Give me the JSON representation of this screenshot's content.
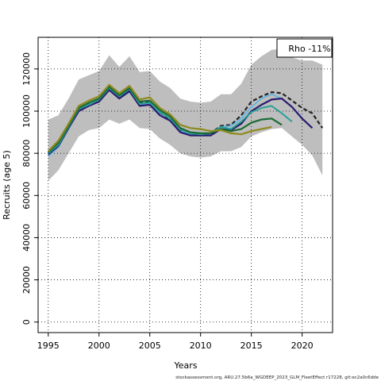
{
  "chart_data": {
    "type": "line",
    "xlabel": "Years",
    "ylabel": "Recruits (age 5)",
    "xlim": [
      1994,
      2023
    ],
    "ylim": [
      -5000,
      135000
    ],
    "xticks": [
      1995,
      2000,
      2005,
      2010,
      2015,
      2020
    ],
    "yticks": [
      0,
      20000,
      40000,
      60000,
      80000,
      100000,
      120000
    ],
    "grid": true,
    "legend": {
      "position": "top-right",
      "text": "Rho -11%"
    },
    "footer": "stockassessment.org, ARU.27.5b6a_WGDEEP_2023_GLM_FleetEffect r17228, git:ec2a0c6dde",
    "band": {
      "color": "#bebebe",
      "x": [
        1995,
        1996,
        1997,
        1998,
        1999,
        2000,
        2001,
        2002,
        2003,
        2004,
        2005,
        2006,
        2007,
        2008,
        2009,
        2010,
        2011,
        2012,
        2013,
        2014,
        2015,
        2016,
        2017,
        2018,
        2019,
        2020,
        2021,
        2022
      ],
      "upper": [
        96000,
        98000,
        106000,
        115000,
        117000,
        119000,
        126500,
        121000,
        126000,
        118500,
        119000,
        114000,
        111000,
        106000,
        104500,
        104000,
        104500,
        108000,
        108000,
        113000,
        122000,
        126000,
        129000,
        129500,
        125500,
        124000,
        124000,
        122000
      ],
      "lower": [
        67000,
        72000,
        80000,
        88000,
        91000,
        92000,
        96000,
        94000,
        96000,
        92000,
        91500,
        87000,
        84000,
        80000,
        78500,
        78000,
        78500,
        81000,
        81000,
        83000,
        88000,
        90000,
        91500,
        92000,
        88000,
        84000,
        79000,
        69500
      ]
    },
    "series": [
      {
        "color": "#222222",
        "dash": "5,3",
        "width": 2.2,
        "x": [
          1995,
          1996,
          1997,
          1998,
          1999,
          2000,
          2001,
          2002,
          2003,
          2004,
          2005,
          2006,
          2007,
          2008,
          2009,
          2010,
          2011,
          2012,
          2013,
          2014,
          2015,
          2016,
          2017,
          2018,
          2019,
          2020,
          2021,
          2022
        ],
        "y": [
          80000,
          84000,
          92000,
          101000,
          103000,
          105000,
          111000,
          107000,
          110000,
          104000,
          104500,
          99500,
          96000,
          91000,
          89500,
          89000,
          89500,
          93000,
          93500,
          98000,
          104500,
          107000,
          109000,
          108500,
          105000,
          101500,
          99000,
          92000
        ]
      },
      {
        "color": "#5ab4e5",
        "width": 1.6,
        "x": [
          1995,
          1996,
          1997,
          1998,
          1999,
          2000,
          2001,
          2002,
          2003,
          2004,
          2005,
          2006,
          2007,
          2008,
          2009,
          2010,
          2011,
          2012,
          2013,
          2014,
          2015,
          2016,
          2017,
          2018,
          2019,
          2020
        ],
        "y": [
          78500,
          83000,
          91500,
          100500,
          102500,
          104500,
          110000,
          106000,
          109000,
          103000,
          103500,
          98500,
          95500,
          90500,
          89000,
          88500,
          89000,
          92500,
          93000,
          96500,
          102000,
          106000,
          108000,
          106000,
          102000,
          97000
        ]
      },
      {
        "color": "#2a1a6e",
        "width": 2.2,
        "x": [
          1995,
          1996,
          1997,
          1998,
          1999,
          2000,
          2001,
          2002,
          2003,
          2004,
          2005,
          2006,
          2007,
          2008,
          2009,
          2010,
          2011,
          2012,
          2013,
          2014,
          2015,
          2016,
          2017,
          2018,
          2019,
          2020,
          2021
        ],
        "y": [
          79500,
          83500,
          92000,
          100000,
          102500,
          104500,
          110000,
          106000,
          109500,
          102500,
          103000,
          98000,
          95500,
          90000,
          88500,
          88500,
          88500,
          91500,
          91000,
          94000,
          100000,
          103000,
          105500,
          106000,
          102000,
          96500,
          92000
        ]
      },
      {
        "color": "#2aa198",
        "width": 2.0,
        "x": [
          1995,
          1996,
          1997,
          1998,
          1999,
          2000,
          2001,
          2002,
          2003,
          2004,
          2005,
          2006,
          2007,
          2008,
          2009,
          2010,
          2011,
          2012,
          2013,
          2014,
          2015,
          2016,
          2017,
          2018,
          2019
        ],
        "y": [
          80000,
          84000,
          92500,
          101000,
          103000,
          105500,
          111000,
          107000,
          110500,
          103500,
          104000,
          99500,
          96500,
          91500,
          89500,
          89000,
          89500,
          92500,
          91500,
          95000,
          99500,
          101500,
          102500,
          99000,
          95000
        ]
      },
      {
        "color": "#1b6b35",
        "width": 2.2,
        "x": [
          1995,
          1996,
          1997,
          1998,
          1999,
          2000,
          2001,
          2002,
          2003,
          2004,
          2005,
          2006,
          2007,
          2008,
          2009,
          2010,
          2011,
          2012,
          2013,
          2014,
          2015,
          2016,
          2017,
          2018
        ],
        "y": [
          80500,
          85000,
          93000,
          101500,
          104000,
          106000,
          111500,
          107500,
          111000,
          104500,
          105000,
          100500,
          97500,
          92000,
          90000,
          89500,
          89500,
          91500,
          90500,
          91500,
          94500,
          96000,
          96500,
          93500
        ]
      },
      {
        "color": "#8f8a1e",
        "width": 2.2,
        "x": [
          1995,
          1996,
          1997,
          1998,
          1999,
          2000,
          2001,
          2002,
          2003,
          2004,
          2005,
          2006,
          2007,
          2008,
          2009,
          2010,
          2011,
          2012,
          2013,
          2014,
          2015,
          2016,
          2017
        ],
        "y": [
          81000,
          86000,
          94000,
          102500,
          105000,
          107000,
          112500,
          108500,
          112000,
          105500,
          106500,
          101500,
          98500,
          93500,
          92000,
          91500,
          90500,
          91000,
          89500,
          89000,
          90500,
          91500,
          92500
        ]
      }
    ]
  }
}
